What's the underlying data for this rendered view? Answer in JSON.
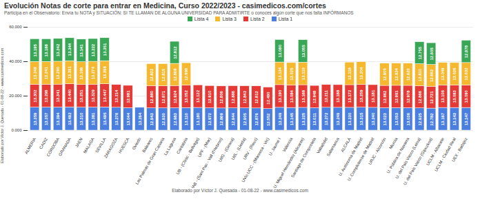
{
  "chart_data": {
    "type": "bar",
    "stacked": true,
    "data_labels": true,
    "grid": true,
    "legend": "top",
    "title": "Evolución Notas de corte para entrar en Medicina, Curso 2022/2023 - casimedicos.com/cortes",
    "subtitle": "Participa en el Observatorio: Envía tu NOTA y SITUACIÓN: SI TE LLAMAN DE ALGUNA UNIVERSIDAD PARA ADMITIRTE o conoces algún corte que nos falta INFÓRMANOS",
    "y_label": "Elaborado por Víctor J. Quesada - 01-08-22 - www.casimedicos.com",
    "caption": "Elaborado por Víctor J. Quesada - 01-08-22 - www.casimedicos.com",
    "categories": [
      "ALMERIA",
      "CADIZ",
      "CORDOBA",
      "GRANADA",
      "JAEN",
      "MALAGA",
      "SEVILLA",
      "ZARAGOZA",
      "HUESCA",
      "Oviedo",
      "Baleares",
      "Las Palmas de Gran Canaria",
      "La Laguna",
      "Cantabria",
      "UB - (Clínic - Bellvitge)",
      "UPF - (Mar)",
      "UAB - (Sant Pau - Vall d'Hebron)",
      "UdG - (Girona)",
      "UdL - (Lleida)",
      "URV - (Reus)",
      "UVic-UCC - (Manresa - Vic)",
      "U. Jaume I",
      "Valencia",
      "U. Miguel Hernández (Alicante)",
      "Santiago de Compostela",
      "Valladolid",
      "Salamanca",
      "ALCALÁ",
      "U. Autónoma de Madrid",
      "U. Complutense de Madrid",
      "URJC - Alcorcón",
      "Murcia",
      "U. Pública de Navarra",
      "U. del País Vasco (Leioa)",
      "U. del País Vasco (Gipuzkoa)",
      "UCLM - Albacete",
      "UCLM - Ciudad Real",
      "UEX - Badajoz"
    ],
    "series": [
      {
        "name": "Lista 1",
        "color": "#4a7fe0",
        "values": [
          13.359,
          13.357,
          13.394,
          13.492,
          13.31,
          13.381,
          13.495,
          13.276,
          13.044,
          13.264,
          12.943,
          12.93,
          12.983,
          13.11,
          13.18,
          12.972,
          12.869,
          12.944,
          12.905,
          12.876,
          12.552,
          13.249,
          13.145,
          13.225,
          13.011,
          13.272,
          13.249,
          13.23,
          13.315,
          13.24,
          13.023,
          13.053,
          13.036,
          12.925,
          12.782,
          13.167,
          13.143,
          13.147
        ]
      },
      {
        "name": "Lista 2",
        "color": "#e53935",
        "values": [
          13.302,
          13.296,
          13.341,
          13.44,
          13.251,
          13.329,
          13.447,
          13.214,
          12.981,
          null,
          12.88,
          12.871,
          12.924,
          13.052,
          13.122,
          12.91,
          12.806,
          12.886,
          12.843,
          12.812,
          12.49,
          13.19,
          13.084,
          13.168,
          12.948,
          13.211,
          13.188,
          13.172,
          13.259,
          13.181,
          12.962,
          12.991,
          12.978,
          12.866,
          12.721,
          13.106,
          13.083,
          13.09
        ]
      },
      {
        "name": "Lista 3",
        "color": "#f5b82e",
        "values": [
          13.248,
          13.241,
          13.29,
          13.391,
          13.196,
          13.274,
          13.398,
          null,
          null,
          null,
          12.822,
          12.815,
          12.868,
          12.996,
          null,
          null,
          null,
          null,
          null,
          null,
          null,
          13.134,
          13.025,
          13.11,
          null,
          null,
          null,
          13.118,
          13.204,
          null,
          12.905,
          12.934,
          12.92,
          12.81,
          12.662,
          13.049,
          13.026,
          13.032
        ]
      },
      {
        "name": "Lista 4",
        "color": "#3aa757",
        "values": [
          13.195,
          13.188,
          13.242,
          13.344,
          13.141,
          13.222,
          13.351,
          null,
          null,
          null,
          null,
          null,
          12.812,
          null,
          null,
          null,
          null,
          null,
          null,
          null,
          null,
          13.08,
          null,
          13.055,
          null,
          null,
          null,
          null,
          null,
          null,
          null,
          null,
          null,
          12.755,
          12.605,
          null,
          null,
          12.978
        ]
      }
    ],
    "ylim": [
      0,
      60
    ],
    "yticks": [
      {
        "value": 0,
        "label": "0.000"
      },
      {
        "value": 20,
        "label": "20.000"
      },
      {
        "value": 40,
        "label": "40.000"
      },
      {
        "value": 60,
        "label": "60.000"
      }
    ]
  }
}
